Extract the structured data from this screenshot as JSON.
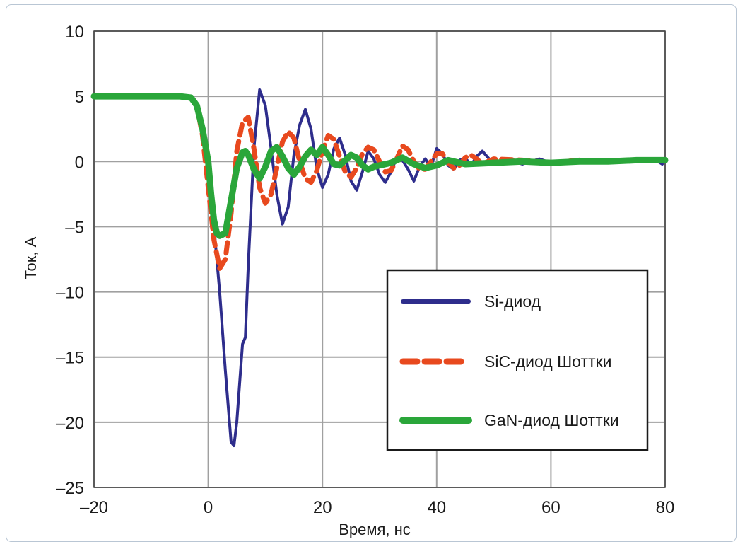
{
  "chart_data": {
    "type": "line",
    "title": "",
    "xlabel": "Время, нс",
    "ylabel": "Ток, А",
    "xlim": [
      -20,
      80
    ],
    "ylim": [
      -25,
      10
    ],
    "xticks": [
      -20,
      0,
      20,
      40,
      60,
      80
    ],
    "xtick_labels": [
      "–20",
      "0",
      "20",
      "40",
      "60",
      "80"
    ],
    "yticks": [
      10,
      5,
      0,
      -5,
      -10,
      -15,
      -20,
      -25
    ],
    "ytick_labels": [
      "10",
      "5",
      "0",
      "–5",
      "–10",
      "–15",
      "–20",
      "–25"
    ],
    "grid": true,
    "legend_position": "bottom-right",
    "series": [
      {
        "name": "Si-диод",
        "color": "#2e2d8c",
        "style": "solid",
        "x": [
          -20,
          -15,
          -10,
          -5,
          -3,
          -2,
          -1,
          0,
          1,
          2,
          3,
          4,
          4.5,
          5,
          6,
          6.5,
          7,
          8,
          9,
          10,
          11,
          12,
          13,
          14,
          15,
          16,
          17,
          18,
          19,
          20,
          21,
          22,
          23,
          24,
          25,
          26,
          27,
          28,
          29,
          30,
          31,
          32,
          33,
          34,
          35,
          36,
          37,
          38,
          39,
          40,
          41,
          42,
          43,
          44,
          45,
          46,
          47,
          48,
          49,
          50,
          52,
          55,
          58,
          60,
          65,
          70,
          75,
          78,
          79.5
        ],
        "y": [
          5,
          5,
          5,
          5,
          4.9,
          4.3,
          2.5,
          -1,
          -5,
          -10,
          -16,
          -21.5,
          -21.8,
          -20,
          -14,
          -13.5,
          -8,
          1,
          5.5,
          4.3,
          1,
          -2.5,
          -4.8,
          -3.5,
          0.5,
          2.8,
          4,
          2.5,
          -0.5,
          -2,
          -1,
          1,
          1.8,
          0.5,
          -1.5,
          -2.2,
          -0.8,
          0.8,
          0.2,
          -1,
          -1.6,
          -0.8,
          0.3,
          0.1,
          -0.6,
          -1.5,
          -0.4,
          0.2,
          -0.4,
          1,
          0.6,
          -0.3,
          -0.6,
          0.1,
          0.3,
          -0.3,
          0.4,
          0.8,
          0.3,
          -0.2,
          0.2,
          -0.2,
          0.2,
          -0.1,
          0.1,
          -0.1,
          0.1,
          0.2,
          -0.2
        ]
      },
      {
        "name": "SiC-диод Шоттки",
        "color": "#e8491e",
        "style": "dashed",
        "x": [
          -20,
          -15,
          -10,
          -5,
          -3,
          -2,
          -1,
          0,
          1,
          2,
          3,
          4,
          5,
          6,
          7,
          8,
          9,
          10,
          11,
          12,
          13,
          14,
          15,
          16,
          17,
          18,
          19,
          20,
          21,
          22,
          23,
          24,
          25,
          26,
          27,
          28,
          29,
          30,
          31,
          32,
          33,
          34,
          35,
          36,
          37,
          38,
          39,
          40,
          41,
          42,
          43,
          44,
          45,
          46,
          47,
          48,
          50,
          55,
          60,
          65,
          70,
          75,
          80
        ],
        "y": [
          5,
          5,
          5,
          5,
          4.9,
          4.3,
          2,
          -2,
          -6,
          -8.2,
          -7.5,
          -4,
          0.8,
          3,
          3.4,
          1,
          -2,
          -3.2,
          -2.5,
          -0.5,
          1.5,
          2.3,
          1.8,
          0,
          -1.3,
          -1.6,
          -0.7,
          0.8,
          2,
          1.7,
          0.4,
          -0.8,
          -1.2,
          -0.5,
          0.6,
          1.1,
          0.9,
          0,
          -0.8,
          -0.7,
          0.2,
          1.2,
          0.9,
          0,
          -0.6,
          -0.6,
          0,
          0.6,
          0.6,
          -0.1,
          -0.5,
          -0.3,
          0.3,
          0.5,
          0.2,
          -0.2,
          0.2,
          0.1,
          -0.1,
          0.1,
          0,
          0.1,
          0.1
        ]
      },
      {
        "name": "GaN-диод Шоттки",
        "color": "#2aa63a",
        "style": "solid-thick",
        "x": [
          -20,
          -15,
          -10,
          -5,
          -3,
          -2,
          -1,
          0,
          0.5,
          1,
          1.5,
          2,
          2.5,
          3,
          4,
          5,
          6,
          6.5,
          7,
          8,
          9,
          10,
          11,
          12,
          13,
          14,
          15,
          16,
          17,
          18,
          19,
          20,
          21,
          22,
          23,
          24,
          25,
          26,
          27,
          28,
          29,
          30,
          32,
          34,
          36,
          38,
          40,
          42,
          45,
          50,
          55,
          60,
          65,
          70,
          75,
          80
        ],
        "y": [
          5,
          5,
          5,
          5,
          4.9,
          4.3,
          2.5,
          0,
          -2.5,
          -4.5,
          -5.5,
          -5.7,
          -5.6,
          -5.5,
          -3,
          -0.5,
          0.7,
          0.8,
          0.5,
          -0.6,
          -1.3,
          -0.4,
          0.8,
          1.1,
          0.4,
          -0.5,
          -1,
          -0.4,
          0.4,
          0.9,
          0.5,
          1.1,
          0.5,
          -0.2,
          -0.3,
          0.1,
          0.5,
          0.3,
          -0.3,
          -0.6,
          -0.4,
          -0.3,
          -0.1,
          0.3,
          -0.2,
          -0.5,
          -0.3,
          0.1,
          -0.2,
          -0.1,
          0,
          -0.1,
          0,
          0,
          0.1,
          0.1
        ]
      }
    ]
  }
}
